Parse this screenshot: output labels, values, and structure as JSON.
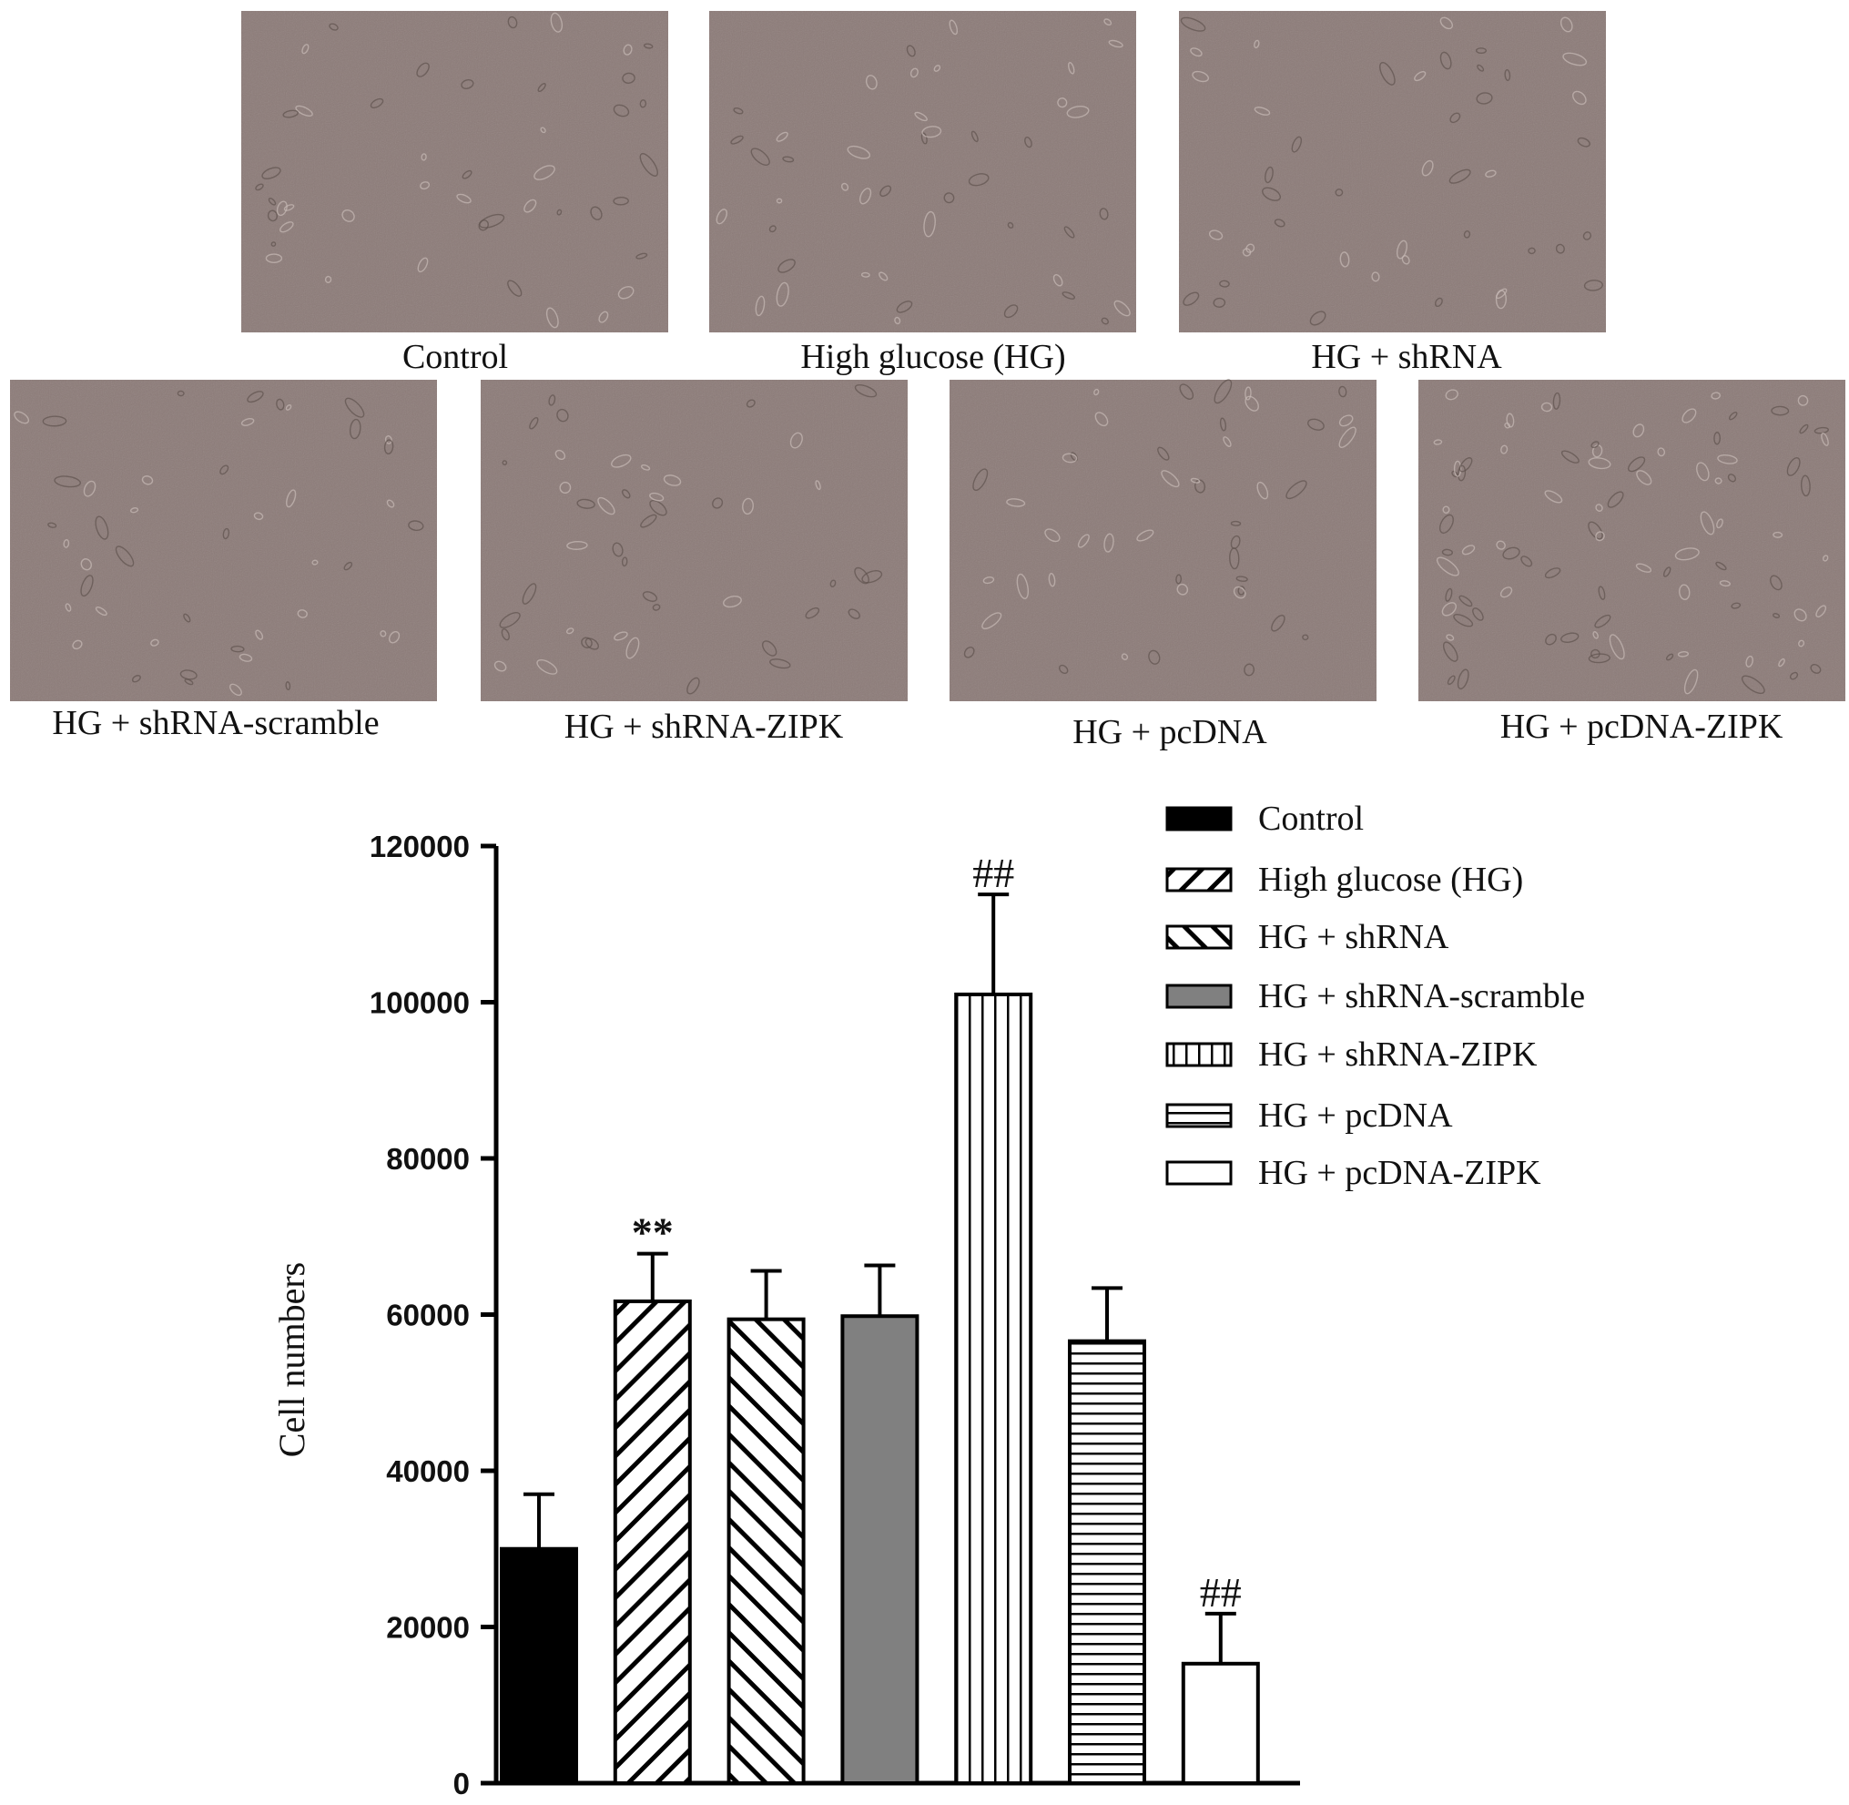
{
  "micrographs": {
    "panels": [
      {
        "label": "Control"
      },
      {
        "label": "High glucose (HG)"
      },
      {
        "label": "HG + shRNA"
      },
      {
        "label": "HG + shRNA-scramble"
      },
      {
        "label": "HG + shRNA-ZIPK"
      },
      {
        "label": "HG + pcDNA"
      },
      {
        "label": "HG + pcDNA-ZIPK"
      }
    ],
    "background_color": "#8c7b78"
  },
  "chart_data": {
    "type": "bar",
    "title": "",
    "xlabel": "",
    "ylabel": "Cell numbers",
    "ylim": [
      0,
      120000
    ],
    "yticks": [
      0,
      20000,
      40000,
      60000,
      80000,
      100000,
      120000
    ],
    "ytick_labels": [
      "0",
      "20000",
      "40000",
      "60000",
      "80000",
      "100000",
      "120000"
    ],
    "grid": false,
    "legend_position": "top-right",
    "categories": [
      "Control",
      "High glucose (HG)",
      "HG + shRNA",
      "HG + shRNA-scramble",
      "HG + shRNA-ZIPK",
      "HG + pcDNA",
      "HG + pcDNA-ZIPK"
    ],
    "values": [
      30000,
      61700,
      59400,
      59800,
      101000,
      56600,
      15300
    ],
    "error_upper": [
      7000,
      6100,
      6200,
      6500,
      12800,
      6800,
      6400
    ],
    "annotations": [
      "",
      "**",
      "",
      "",
      "##",
      "",
      "##"
    ],
    "series_style": [
      {
        "fill": "solid",
        "color": "#000000"
      },
      {
        "fill": "diagonal-up",
        "color": "#000000"
      },
      {
        "fill": "diagonal-down",
        "color": "#000000"
      },
      {
        "fill": "solid",
        "color": "#808080"
      },
      {
        "fill": "vertical-lines",
        "color": "#000000"
      },
      {
        "fill": "horizontal-lines",
        "color": "#000000"
      },
      {
        "fill": "solid",
        "color": "#ffffff"
      }
    ]
  }
}
